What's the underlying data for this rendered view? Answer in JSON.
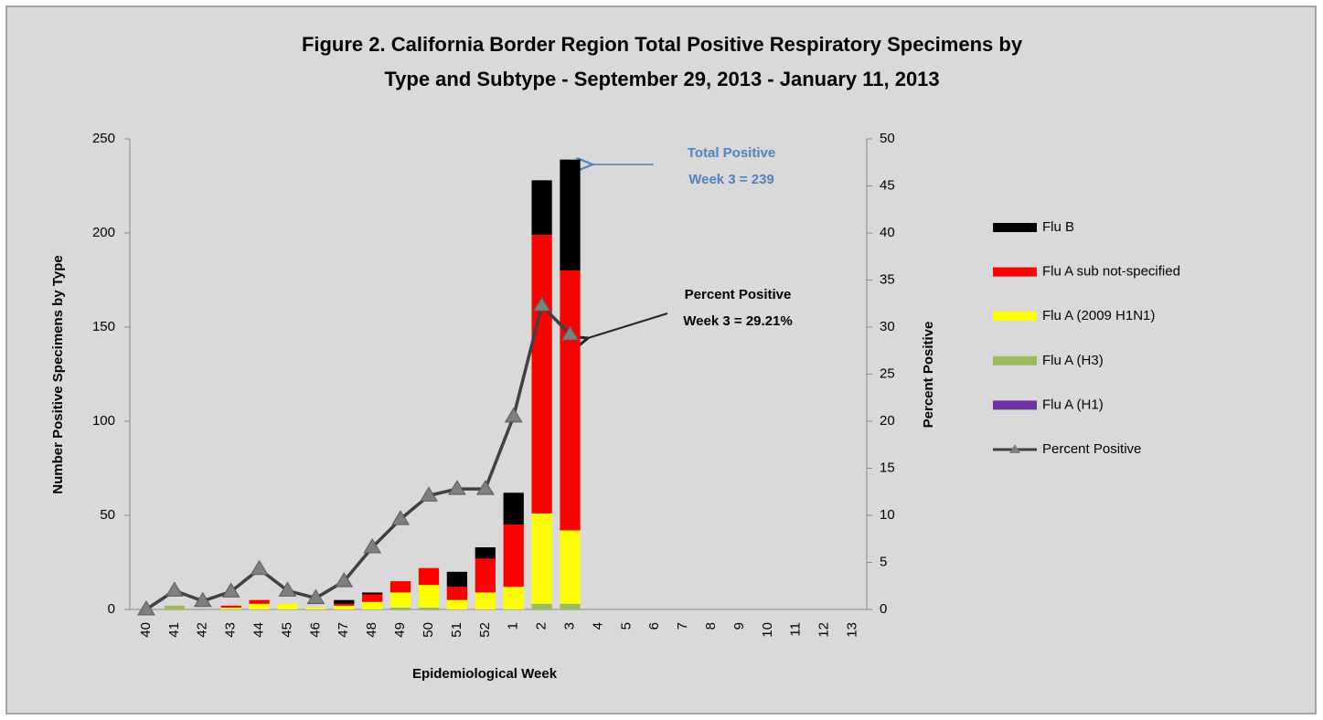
{
  "chart_data": {
    "type": "bar",
    "title": [
      "Figure 2. California Border Region Total Positive Respiratory Specimens by",
      "Type and Subtype - September 29, 2013 - January 11, 2013"
    ],
    "x_label": "Epidemiological Week",
    "y_label": "Number Positive Specimens by Type",
    "y2_label": "Percent Positive",
    "categories": [
      "40",
      "41",
      "42",
      "43",
      "44",
      "45",
      "46",
      "47",
      "48",
      "49",
      "50",
      "51",
      "52",
      "1",
      "2",
      "3",
      "4",
      "5",
      "6",
      "7",
      "8",
      "9",
      "10",
      "11",
      "12",
      "13"
    ],
    "stacked": true,
    "series": [
      {
        "name": "Flu A (H1)",
        "color": "#7030a0",
        "values": [
          0,
          0,
          0,
          0,
          0,
          0,
          0,
          0,
          0,
          0,
          0,
          0,
          0,
          0,
          0,
          0,
          null,
          null,
          null,
          null,
          null,
          null,
          null,
          null,
          null,
          null
        ]
      },
      {
        "name": "Flu A (H3)",
        "color": "#9bbb59",
        "values": [
          0,
          2,
          0,
          0,
          0,
          0,
          0,
          0,
          0,
          1,
          1,
          0,
          0,
          0,
          3,
          3,
          null,
          null,
          null,
          null,
          null,
          null,
          null,
          null,
          null,
          null
        ]
      },
      {
        "name": "Flu A (2009 H1N1)",
        "color": "#ffff00",
        "values": [
          0,
          0,
          0,
          1,
          3,
          3,
          1,
          2,
          4,
          8,
          12,
          5,
          9,
          12,
          48,
          39,
          null,
          null,
          null,
          null,
          null,
          null,
          null,
          null,
          null,
          null
        ]
      },
      {
        "name": "Flu A sub not-specified",
        "color": "#ff0000",
        "values": [
          0,
          0,
          0,
          1,
          2,
          0,
          0,
          1,
          4,
          6,
          9,
          7,
          18,
          33,
          148,
          138,
          null,
          null,
          null,
          null,
          null,
          null,
          null,
          null,
          null,
          null
        ]
      },
      {
        "name": "Flu B",
        "color": "#000000",
        "values": [
          0,
          0,
          0,
          0,
          0,
          0,
          0,
          2,
          1,
          0,
          0,
          8,
          6,
          17,
          29,
          59,
          null,
          null,
          null,
          null,
          null,
          null,
          null,
          null,
          null,
          null
        ]
      },
      {
        "name": "Percent Positive",
        "color": "#404040",
        "type": "line",
        "axis": "y2",
        "values": [
          0,
          2,
          0.9,
          1.9,
          4.3,
          2,
          1.2,
          3,
          6.6,
          9.6,
          12.1,
          12.8,
          12.8,
          20.5,
          32.3,
          29.21,
          null,
          null,
          null,
          null,
          null,
          null,
          null,
          null,
          null,
          null
        ]
      }
    ],
    "ylim": [
      0,
      250
    ],
    "yticks": [
      0,
      50,
      100,
      150,
      200,
      250
    ],
    "y2lim": [
      0,
      50
    ],
    "y2ticks": [
      0,
      5,
      10,
      15,
      20,
      25,
      30,
      35,
      40,
      45,
      50
    ],
    "grid": false,
    "legend": "right",
    "annotations": [
      {
        "text": [
          "Total Positive",
          "Week 3 = 239"
        ],
        "color": "#4f81bd"
      },
      {
        "text": [
          "Percent Positive",
          "Week 3 = 29.21%"
        ],
        "color": "#000000"
      }
    ]
  }
}
